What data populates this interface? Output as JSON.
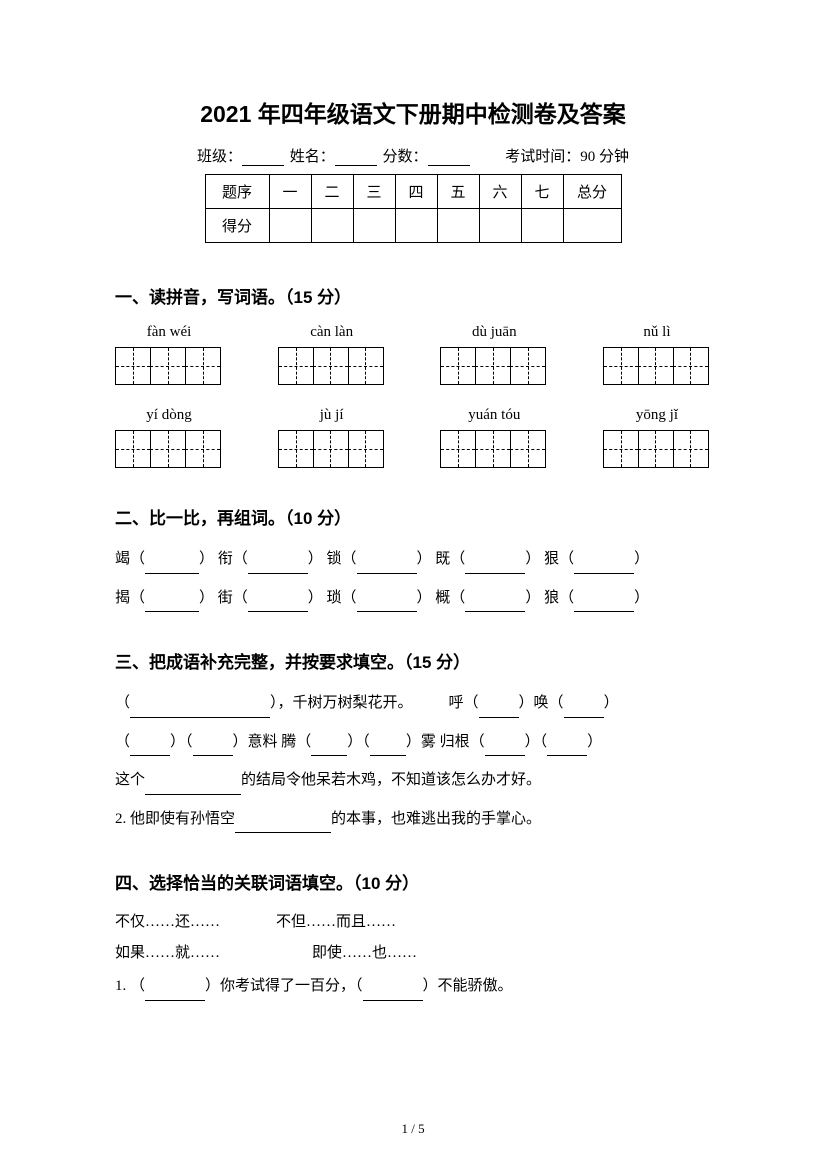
{
  "title": "2021 年四年级语文下册期中检测卷及答案",
  "info": {
    "class_label": "班级：",
    "name_label": "姓名：",
    "score_label": "分数：",
    "time_label": "考试时间：90 分钟"
  },
  "score_table": {
    "row1": [
      "题序",
      "一",
      "二",
      "三",
      "四",
      "五",
      "六",
      "七",
      "总分"
    ],
    "row2_label": "得分"
  },
  "s1": {
    "heading": "一、读拼音，写词语。（15 分）",
    "row1": [
      "fàn wéi",
      "càn làn",
      "dù juān",
      "nǔ lì"
    ],
    "row2": [
      "yí dòng",
      "jù jí",
      "yuán tóu",
      "yōng jǐ"
    ]
  },
  "s2": {
    "heading": "二、比一比，再组词。（10 分）",
    "r1": [
      "竭（",
      "）  衔（",
      "）  锁（",
      "）  既（",
      "）  狠（",
      "）"
    ],
    "r2": [
      "揭（",
      "）  街（",
      "）  琐（",
      "）  概（",
      "）  狼（",
      "）"
    ]
  },
  "s3": {
    "heading": "三、把成语补充完整，并按要求填空。（15 分）",
    "l1a": "（",
    "l1b": "），千树万树梨花开。",
    "l1c": "呼（",
    "l1d": "）唤（",
    "l1e": "）",
    "l2a": "（",
    "l2b": "）（",
    "l2c": "）意料    腾（",
    "l2d": "）（",
    "l2e": "）雾    归根（",
    "l2f": "）（",
    "l2g": "）",
    "l3a": "这个",
    "l3b": "的结局令他呆若木鸡，不知道该怎么办才好。",
    "l4a": "2. 他即使有孙悟空",
    "l4b": "的本事，也难逃出我的手掌心。"
  },
  "s4": {
    "heading": "四、选择恰当的关联词语填空。（10 分）",
    "c1": "不仅……还……",
    "c2": "不但……而且……",
    "c3": "如果……就……",
    "c4": "即使……也……",
    "q1a": "1.  （",
    "q1b": "）你考试得了一百分，（",
    "q1c": "）不能骄傲。"
  },
  "page": {
    "current": "1",
    "total": "5",
    "sep": " / "
  }
}
